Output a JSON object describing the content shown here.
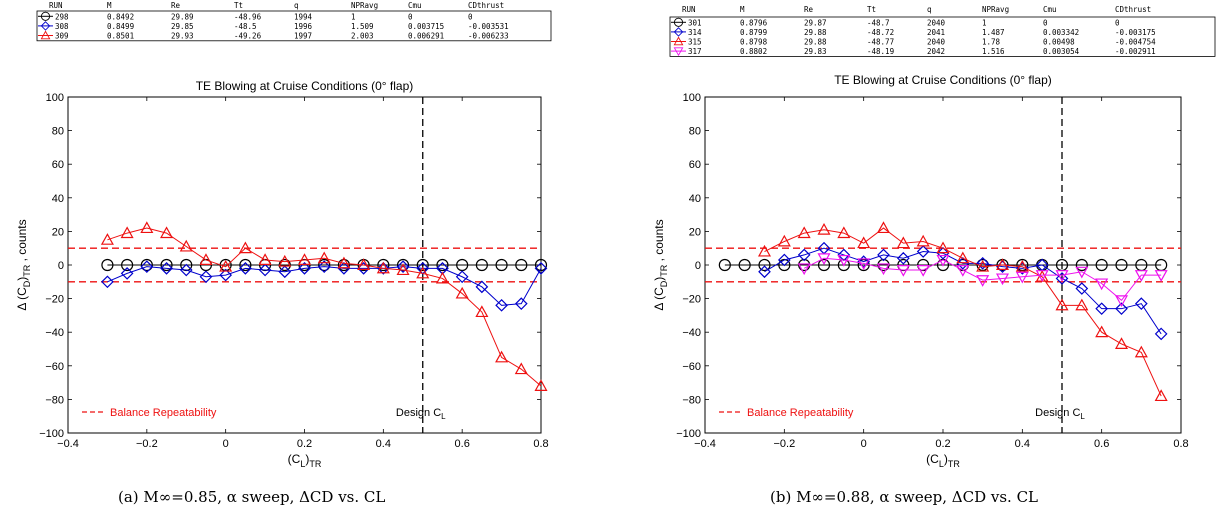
{
  "panels": [
    {
      "id": "a",
      "caption": "(a) M∞=0.85, α sweep, ΔCD vs. CL",
      "table": {
        "headers": [
          "RUN",
          "M",
          "Re",
          "Tt",
          "q",
          "NPRavg",
          "Cmu",
          "CDthrust"
        ],
        "rows": [
          {
            "marker": "circle",
            "color": "#000000",
            "cells": [
              "298",
              "0.8492",
              "29.89",
              "-48.96",
              "1994",
              "1",
              "0",
              "0"
            ]
          },
          {
            "marker": "diamond",
            "color": "#0000cc",
            "cells": [
              "308",
              "0.8499",
              "29.85",
              "-48.5",
              "1996",
              "1.509",
              "0.003715",
              "-0.003531"
            ]
          },
          {
            "marker": "triangle-up",
            "color": "#ee1111",
            "cells": [
              "309",
              "0.8501",
              "29.93",
              "-49.26",
              "1997",
              "2.003",
              "0.006291",
              "-0.006233"
            ]
          }
        ]
      }
    },
    {
      "id": "b",
      "caption": "(b) M∞=0.88, α sweep, ΔCD vs. CL",
      "table": {
        "headers": [
          "RUN",
          "M",
          "Re",
          "Tt",
          "q",
          "NPRavg",
          "Cmu",
          "CDthrust"
        ],
        "rows": [
          {
            "marker": "circle",
            "color": "#000000",
            "cells": [
              "301",
              "0.8796",
              "29.87",
              "-48.7",
              "2040",
              "1",
              "0",
              "0"
            ]
          },
          {
            "marker": "diamond",
            "color": "#0000cc",
            "cells": [
              "314",
              "0.8799",
              "29.88",
              "-48.72",
              "2041",
              "1.487",
              "0.003342",
              "-0.003175"
            ]
          },
          {
            "marker": "triangle-up",
            "color": "#ee1111",
            "cells": [
              "315",
              "0.8798",
              "29.88",
              "-48.77",
              "2040",
              "1.78",
              "0.00498",
              "-0.004754"
            ]
          },
          {
            "marker": "triangle-down",
            "color": "#ee11ee",
            "cells": [
              "317",
              "0.8802",
              "29.83",
              "-48.19",
              "2042",
              "1.516",
              "0.003054",
              "-0.002911"
            ]
          }
        ]
      }
    }
  ],
  "chart_data": [
    {
      "type": "line",
      "title": "TE Blowing at Cruise Conditions (0° flap)",
      "xlabel": "(CL)TR",
      "ylabel": "Δ (CD)TR , counts",
      "xlim": [
        -0.4,
        0.8
      ],
      "ylim": [
        -100,
        100
      ],
      "xticks": [
        -0.4,
        -0.2,
        0,
        0.2,
        0.4,
        0.6,
        0.8
      ],
      "yticks": [
        -100,
        -80,
        -60,
        -40,
        -20,
        0,
        20,
        40,
        60,
        80,
        100
      ],
      "xtick_labels": [
        "−0.4",
        "−0.2",
        "0",
        "0.2",
        "0.4",
        "0.6",
        "0.8"
      ],
      "ytick_labels": [
        "−100",
        "−80",
        "−60",
        "−40",
        "−20",
        "0",
        "20",
        "40",
        "60",
        "80",
        "100"
      ],
      "hlines": [
        10,
        -10
      ],
      "hline_color": "#ee1111",
      "vline": 0.5,
      "vline_label": "Design CL",
      "legend_label": "Balance Repeatability",
      "legend_placement": "bottom-left",
      "series": [
        {
          "name": "298",
          "color": "#000000",
          "marker": "circle",
          "x": [
            -0.3,
            -0.25,
            -0.2,
            -0.15,
            -0.1,
            -0.05,
            0.0,
            0.05,
            0.1,
            0.15,
            0.2,
            0.25,
            0.3,
            0.35,
            0.4,
            0.45,
            0.5,
            0.55,
            0.6,
            0.65,
            0.7,
            0.75,
            0.8
          ],
          "y": [
            0,
            0,
            0,
            0,
            0,
            0,
            0,
            0,
            0,
            0,
            0,
            0,
            0,
            0,
            0,
            0,
            0,
            0,
            0,
            0,
            0,
            0,
            0
          ]
        },
        {
          "name": "308",
          "color": "#0000cc",
          "marker": "diamond",
          "x": [
            -0.3,
            -0.25,
            -0.2,
            -0.15,
            -0.1,
            -0.05,
            0.0,
            0.05,
            0.1,
            0.15,
            0.2,
            0.25,
            0.3,
            0.35,
            0.4,
            0.45,
            0.5,
            0.55,
            0.6,
            0.65,
            0.7,
            0.75,
            0.8
          ],
          "y": [
            -10,
            -5,
            -1,
            -2,
            -3,
            -7,
            -6,
            -2,
            -3,
            -4,
            -2,
            -1,
            -2,
            -2,
            -2,
            -1,
            -2,
            -2,
            -7,
            -13,
            -24,
            -23,
            -2
          ]
        },
        {
          "name": "309",
          "color": "#ee1111",
          "marker": "triangle-up",
          "x": [
            -0.3,
            -0.25,
            -0.2,
            -0.15,
            -0.1,
            -0.05,
            0.0,
            0.05,
            0.1,
            0.15,
            0.2,
            0.25,
            0.3,
            0.35,
            0.4,
            0.45,
            0.5,
            0.55,
            0.6,
            0.65,
            0.7,
            0.75,
            0.8
          ],
          "y": [
            15,
            19,
            22,
            19,
            11,
            3,
            -1,
            10,
            3,
            2,
            3,
            4,
            1,
            0,
            -2,
            -3,
            -5,
            -8,
            -17,
            -28,
            -55,
            -62,
            -72
          ]
        }
      ]
    },
    {
      "type": "line",
      "title": "TE Blowing at Cruise Conditions (0° flap)",
      "xlabel": "(CL)TR",
      "ylabel": "Δ (CD)TR , counts",
      "xlim": [
        -0.4,
        0.8
      ],
      "ylim": [
        -100,
        100
      ],
      "xticks": [
        -0.4,
        -0.2,
        0,
        0.2,
        0.4,
        0.6,
        0.8
      ],
      "yticks": [
        -100,
        -80,
        -60,
        -40,
        -20,
        0,
        20,
        40,
        60,
        80,
        100
      ],
      "xtick_labels": [
        "−0.4",
        "−0.2",
        "0",
        "0.2",
        "0.4",
        "0.6",
        "0.8"
      ],
      "ytick_labels": [
        "−100",
        "−80",
        "−60",
        "−40",
        "−20",
        "0",
        "20",
        "40",
        "60",
        "80",
        "100"
      ],
      "hlines": [
        10,
        -10
      ],
      "hline_color": "#ee1111",
      "vline": 0.5,
      "vline_label": "Design CL",
      "legend_label": "Balance Repeatability",
      "legend_placement": "bottom-left",
      "series": [
        {
          "name": "301",
          "color": "#000000",
          "marker": "circle",
          "x": [
            -0.35,
            -0.3,
            -0.25,
            -0.2,
            -0.15,
            -0.1,
            -0.05,
            0.0,
            0.05,
            0.1,
            0.15,
            0.2,
            0.25,
            0.3,
            0.35,
            0.4,
            0.45,
            0.5,
            0.55,
            0.6,
            0.65,
            0.7,
            0.75
          ],
          "y": [
            0,
            0,
            0,
            0,
            0,
            0,
            0,
            0,
            0,
            0,
            0,
            0,
            0,
            0,
            0,
            0,
            0,
            0,
            0,
            0,
            0,
            0,
            0
          ]
        },
        {
          "name": "314",
          "color": "#0000cc",
          "marker": "diamond",
          "x": [
            -0.25,
            -0.2,
            -0.15,
            -0.1,
            -0.05,
            0.0,
            0.05,
            0.1,
            0.15,
            0.2,
            0.25,
            0.3,
            0.35,
            0.4,
            0.45,
            0.5,
            0.55,
            0.6,
            0.65,
            0.7,
            0.75
          ],
          "y": [
            -4,
            3,
            6,
            10,
            6,
            2,
            6,
            4,
            8,
            7,
            1,
            1,
            -1,
            -2,
            0,
            -8,
            -14,
            -26,
            -26,
            -23,
            -41
          ]
        },
        {
          "name": "315",
          "color": "#ee1111",
          "marker": "triangle-up",
          "x": [
            -0.25,
            -0.2,
            -0.15,
            -0.1,
            -0.05,
            0.0,
            0.05,
            0.1,
            0.15,
            0.2,
            0.25,
            0.3,
            0.35,
            0.4,
            0.45,
            0.5,
            0.55,
            0.6,
            0.65,
            0.7,
            0.75
          ],
          "y": [
            8,
            14,
            19,
            21,
            19,
            13,
            22,
            13,
            14,
            10,
            4,
            -1,
            0,
            -1,
            -7,
            -24,
            -24,
            -40,
            -47,
            -52,
            -78
          ]
        },
        {
          "name": "317",
          "color": "#ee11ee",
          "marker": "triangle-down",
          "x": [
            -0.15,
            -0.1,
            -0.05,
            0.0,
            0.05,
            0.1,
            0.15,
            0.2,
            0.25,
            0.3,
            0.35,
            0.4,
            0.45,
            0.5,
            0.55,
            0.6,
            0.65,
            0.7,
            0.75
          ],
          "y": [
            -2,
            4,
            3,
            1,
            -2,
            -3,
            -3,
            3,
            -3,
            -9,
            -8,
            -7,
            -6,
            -6,
            -4,
            -11,
            -21,
            -6,
            -6
          ]
        }
      ]
    }
  ]
}
